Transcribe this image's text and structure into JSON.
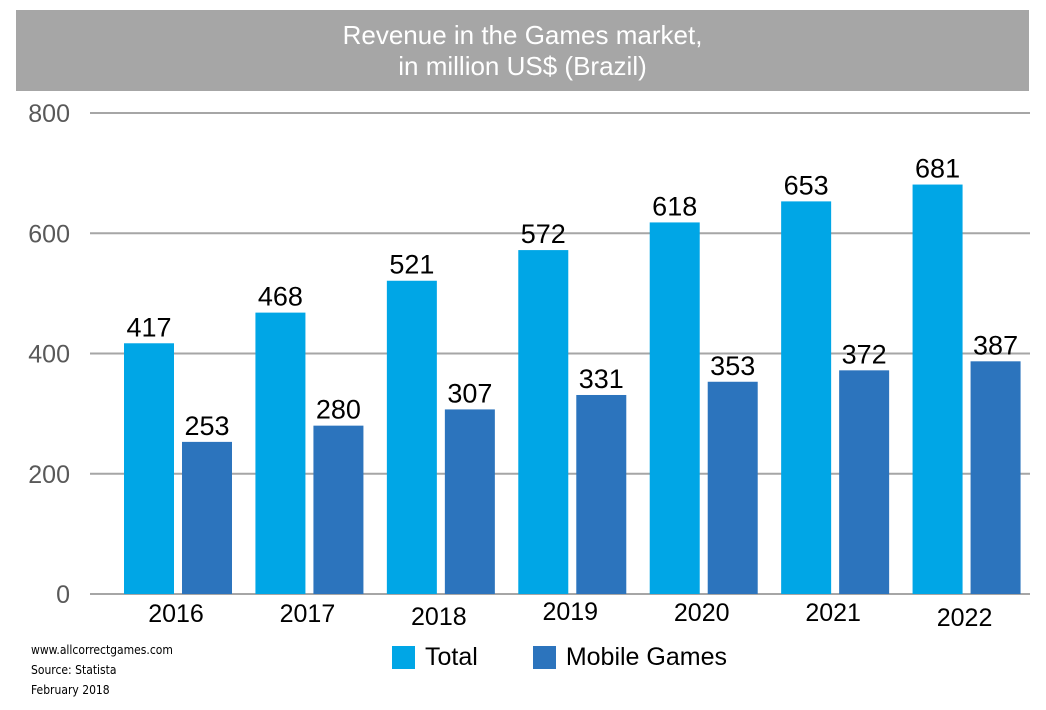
{
  "title": {
    "line1": "Revenue in the Games market,",
    "line2": "in million US$ (Brazil)"
  },
  "source": {
    "website": "www.allcorrectgames.com",
    "source": "Source: Statista",
    "date": "February 2018"
  },
  "colors": {
    "total": "#00a6e6",
    "mobile": "#2c74bd",
    "title_bg": "#a6a6a6",
    "grid": "#a6a6a6"
  },
  "chart_data": {
    "type": "bar",
    "categories": [
      "2016",
      "2017",
      "2018",
      "2019",
      "2020",
      "2021",
      "2022"
    ],
    "series": [
      {
        "name": "Total",
        "values": [
          417,
          468,
          521,
          572,
          618,
          653,
          681
        ]
      },
      {
        "name": "Mobile Games",
        "values": [
          253,
          280,
          307,
          331,
          353,
          372,
          387
        ]
      }
    ],
    "yticks": [
      0,
      200,
      400,
      600,
      800
    ],
    "ylim": [
      0,
      800
    ],
    "grid": true,
    "legend_position": "bottom"
  }
}
